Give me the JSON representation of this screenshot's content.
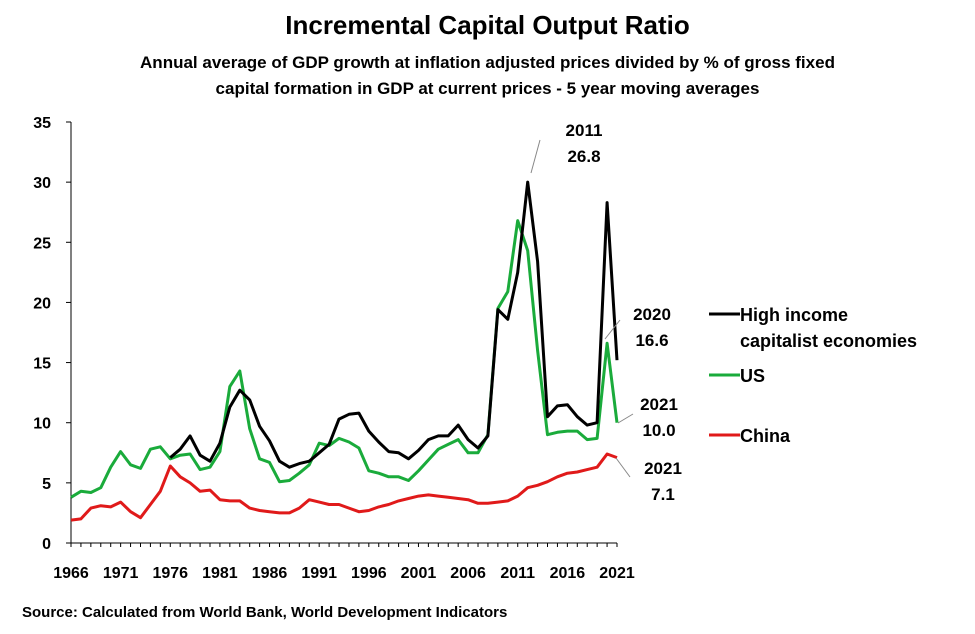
{
  "chart_data": {
    "type": "line",
    "title": "Incremental Capital Output Ratio",
    "subtitle_lines": [
      "Annual average of GDP growth at inflation adjusted prices divided by % of gross fixed",
      "capital formation in GDP at current prices - 5 year moving averages"
    ],
    "source": "Source: Calculated from World Bank, World Development Indicators",
    "ylim": [
      0,
      35
    ],
    "yticks": [
      0,
      5,
      10,
      15,
      20,
      25,
      30,
      35
    ],
    "xlim": [
      1966,
      2021
    ],
    "xticks": [
      1966,
      1971,
      1976,
      1981,
      1986,
      1991,
      1996,
      2001,
      2006,
      2011,
      2016,
      2021
    ],
    "grid": false,
    "legend_position": "right",
    "series": [
      {
        "name": "High income capitalist economies",
        "legend_lines": [
          "High income",
          "capitalist economies"
        ],
        "color": "#000000",
        "x": [
          1976,
          1977,
          1978,
          1979,
          1980,
          1981,
          1982,
          1983,
          1984,
          1985,
          1986,
          1987,
          1988,
          1989,
          1990,
          1991,
          1992,
          1993,
          1994,
          1995,
          1996,
          1997,
          1998,
          1999,
          2000,
          2001,
          2002,
          2003,
          2004,
          2005,
          2006,
          2007,
          2008,
          2009,
          2010,
          2011,
          2012,
          2013,
          2014,
          2015,
          2016,
          2017,
          2018,
          2019,
          2020,
          2021
        ],
        "values": [
          7.1,
          7.8,
          8.9,
          7.3,
          6.8,
          8.3,
          11.3,
          12.7,
          11.9,
          9.7,
          8.5,
          6.8,
          6.3,
          6.6,
          6.8,
          7.5,
          8.2,
          10.3,
          10.7,
          10.8,
          9.3,
          8.4,
          7.6,
          7.5,
          7.0,
          7.7,
          8.6,
          8.9,
          8.9,
          9.8,
          8.6,
          7.9,
          8.9,
          19.4,
          18.6,
          22.5,
          30.0,
          23.4,
          10.5,
          11.4,
          11.5,
          10.5,
          9.8,
          10.0,
          28.3,
          15.2
        ]
      },
      {
        "name": "US",
        "legend_lines": [
          "US"
        ],
        "color": "#1aab3b",
        "x": [
          1966,
          1967,
          1968,
          1969,
          1970,
          1971,
          1972,
          1973,
          1974,
          1975,
          1976,
          1977,
          1978,
          1979,
          1980,
          1981,
          1982,
          1983,
          1984,
          1985,
          1986,
          1987,
          1988,
          1989,
          1990,
          1991,
          1992,
          1993,
          1994,
          1995,
          1996,
          1997,
          1998,
          1999,
          2000,
          2001,
          2002,
          2003,
          2004,
          2005,
          2006,
          2007,
          2008,
          2009,
          2010,
          2011,
          2012,
          2013,
          2014,
          2015,
          2016,
          2017,
          2018,
          2019,
          2020,
          2021
        ],
        "values": [
          3.8,
          4.3,
          4.2,
          4.6,
          6.3,
          7.6,
          6.5,
          6.2,
          7.8,
          8.0,
          7.0,
          7.3,
          7.4,
          6.1,
          6.3,
          7.6,
          13.0,
          14.3,
          9.5,
          7.0,
          6.7,
          5.1,
          5.2,
          5.8,
          6.5,
          8.3,
          8.1,
          8.7,
          8.4,
          7.9,
          6.0,
          5.8,
          5.5,
          5.5,
          5.2,
          6.0,
          6.9,
          7.8,
          8.2,
          8.6,
          7.5,
          7.5,
          9.0,
          19.5,
          20.9,
          26.8,
          24.3,
          16.0,
          9.0,
          9.2,
          9.3,
          9.3,
          8.6,
          8.7,
          16.6,
          10.0
        ]
      },
      {
        "name": "China",
        "legend_lines": [
          "China"
        ],
        "color": "#e01a1a",
        "x": [
          1966,
          1967,
          1968,
          1969,
          1970,
          1971,
          1972,
          1973,
          1974,
          1975,
          1976,
          1977,
          1978,
          1979,
          1980,
          1981,
          1982,
          1983,
          1984,
          1985,
          1986,
          1987,
          1988,
          1989,
          1990,
          1991,
          1992,
          1993,
          1994,
          1995,
          1996,
          1997,
          1998,
          1999,
          2000,
          2001,
          2002,
          2003,
          2004,
          2005,
          2006,
          2007,
          2008,
          2009,
          2010,
          2011,
          2012,
          2013,
          2014,
          2015,
          2016,
          2017,
          2018,
          2019,
          2020,
          2021
        ],
        "values": [
          1.9,
          2.0,
          2.9,
          3.1,
          3.0,
          3.4,
          2.6,
          2.1,
          3.2,
          4.3,
          6.4,
          5.5,
          5.0,
          4.3,
          4.4,
          3.6,
          3.5,
          3.5,
          2.9,
          2.7,
          2.6,
          2.5,
          2.5,
          2.9,
          3.6,
          3.4,
          3.2,
          3.2,
          2.9,
          2.6,
          2.7,
          3.0,
          3.2,
          3.5,
          3.7,
          3.9,
          4.0,
          3.9,
          3.8,
          3.7,
          3.6,
          3.3,
          3.3,
          3.4,
          3.5,
          3.9,
          4.6,
          4.8,
          5.1,
          5.5,
          5.8,
          5.9,
          6.1,
          6.3,
          7.4,
          7.1
        ]
      }
    ],
    "annotations": [
      {
        "name": "ann-2011",
        "lines": [
          "2011",
          "26.8"
        ],
        "point_x": 2011,
        "point_y": 26.8
      },
      {
        "name": "ann-2020",
        "lines": [
          "2020",
          "16.6"
        ],
        "point_x": 2020,
        "point_y": 16.6
      },
      {
        "name": "ann-2021-us",
        "lines": [
          "2021",
          "10.0"
        ],
        "point_x": 2021,
        "point_y": 10.0
      },
      {
        "name": "ann-2021-china",
        "lines": [
          "2021",
          "7.1"
        ],
        "point_x": 2021,
        "point_y": 7.1
      }
    ]
  }
}
